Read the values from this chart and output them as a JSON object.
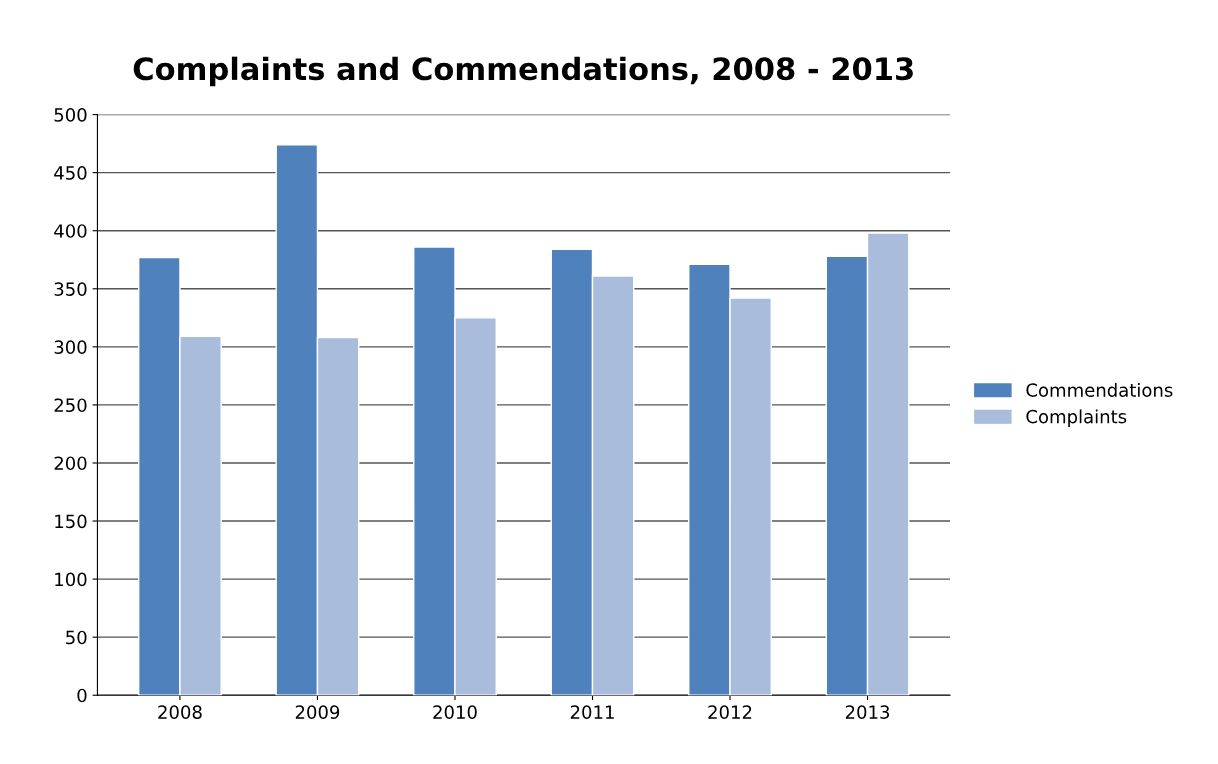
{
  "chart_data": {
    "type": "bar",
    "title": "Complaints and Commendations, 2008 - 2013",
    "categories": [
      "2008",
      "2009",
      "2010",
      "2011",
      "2012",
      "2013"
    ],
    "series": [
      {
        "name": "Commendations",
        "color": "#4f81bd",
        "values": [
          377,
          474,
          386,
          384,
          371,
          378
        ]
      },
      {
        "name": "Complaints",
        "color": "#a9bcdc",
        "values": [
          309,
          308,
          325,
          361,
          342,
          398
        ]
      }
    ],
    "ylim": [
      0,
      500
    ],
    "yticks": [
      0,
      50,
      100,
      150,
      200,
      250,
      300,
      350,
      400,
      450,
      500
    ],
    "grid": "y",
    "legend": "right"
  }
}
